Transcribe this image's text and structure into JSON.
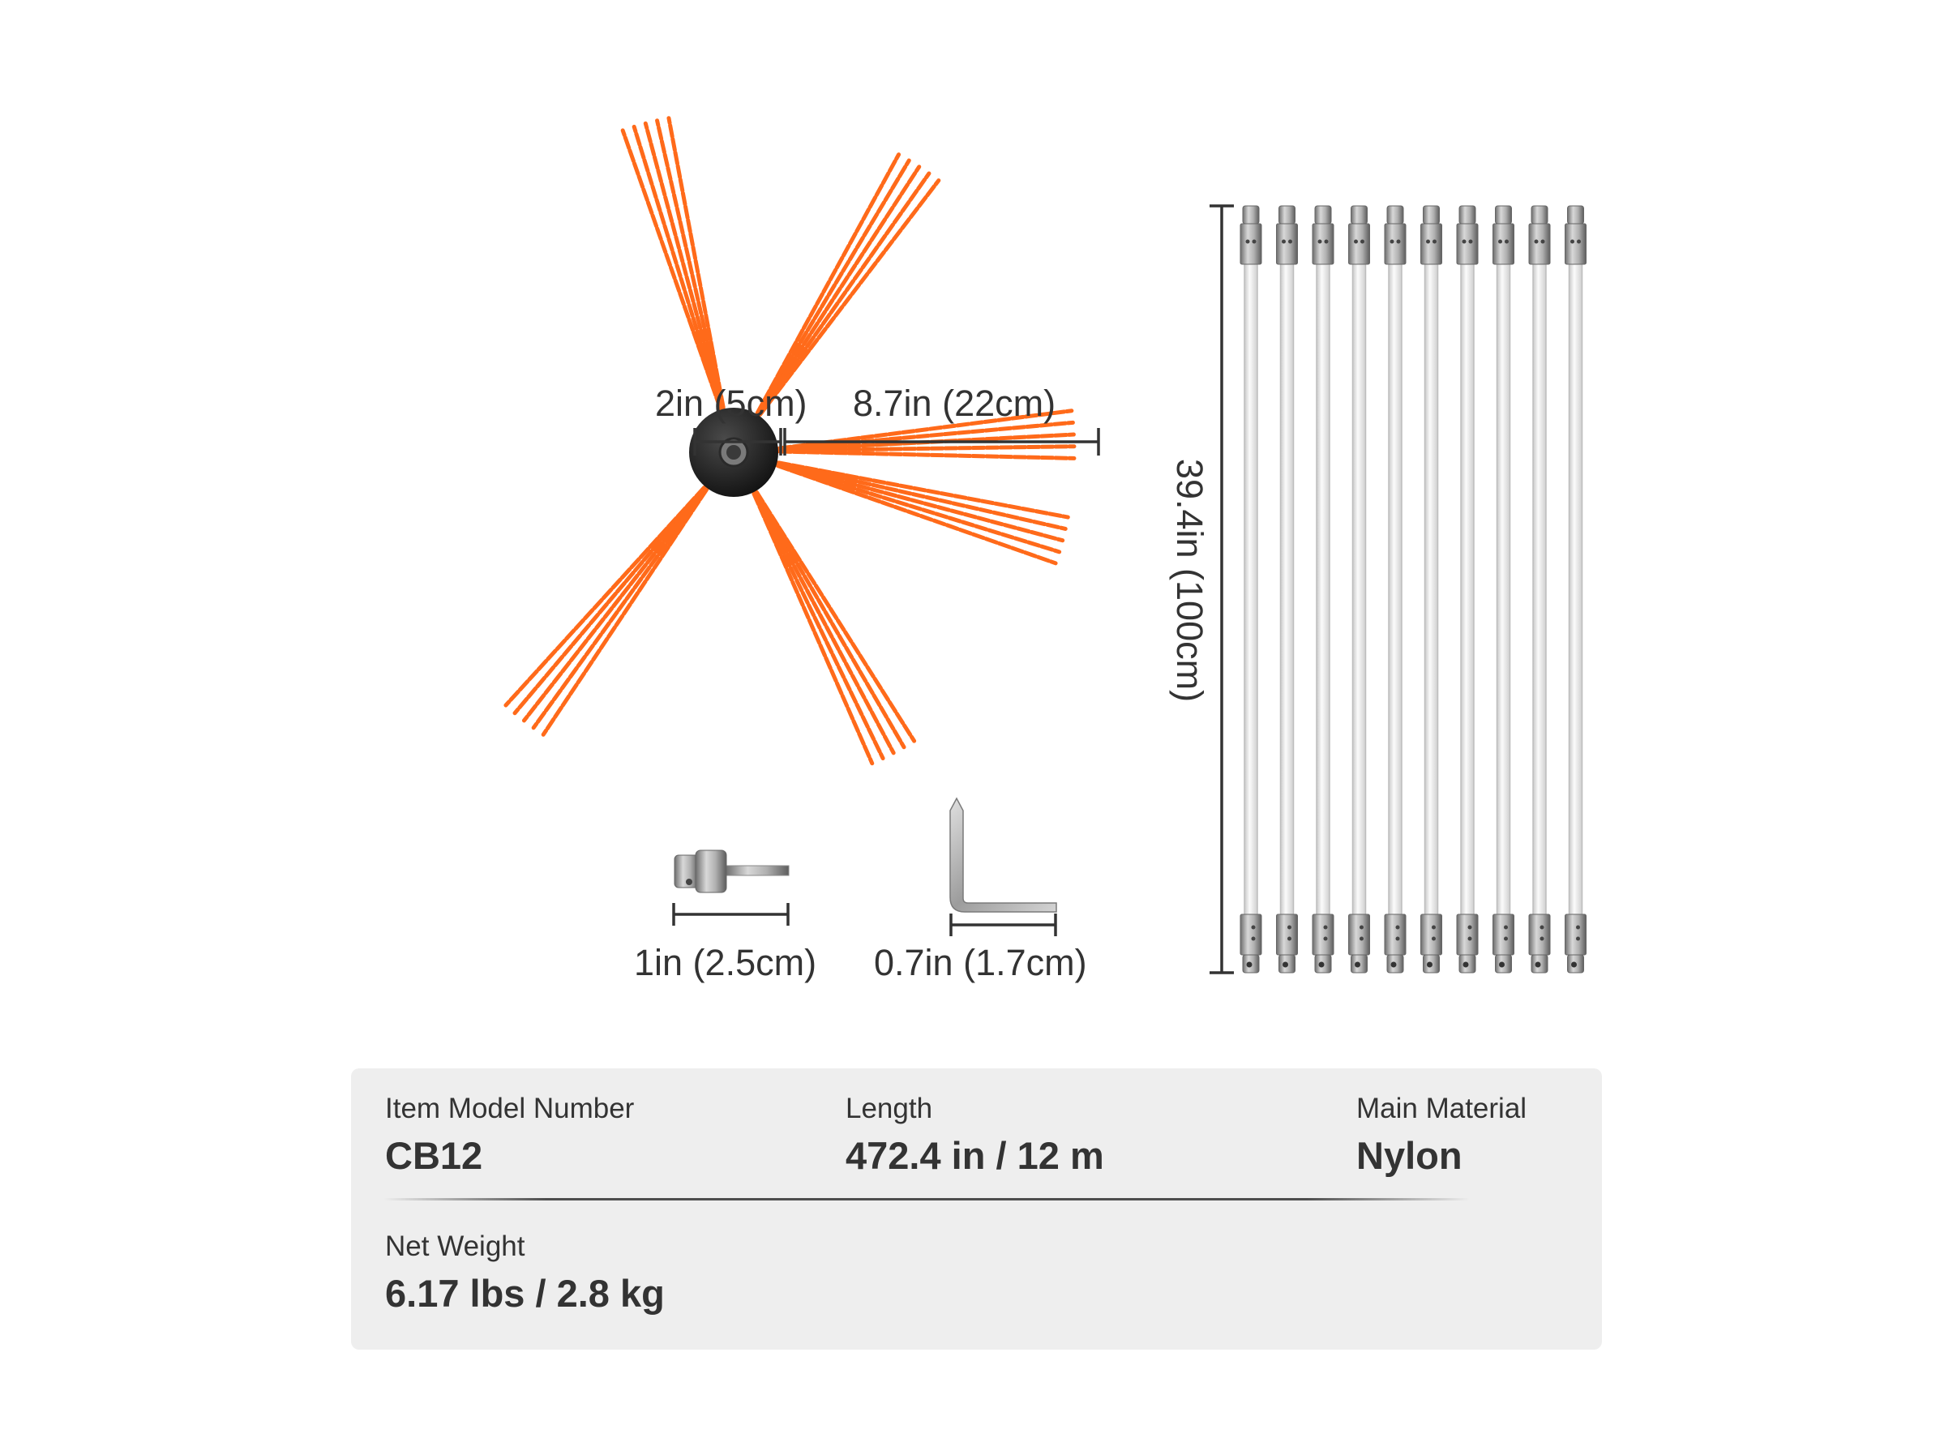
{
  "dimensions": {
    "hub_diameter": "2in (5cm)",
    "bristle_length": "8.7in (22cm)",
    "rod_length": "39.4in (100cm)",
    "adapter_length": "1in (2.5cm)",
    "wrench_length": "0.7in (1.7cm)"
  },
  "product": {
    "bristle_arm_count": 6,
    "rod_count": 10
  },
  "specs": {
    "model_label": "Item Model Number",
    "model_value": "CB12",
    "length_label": "Length",
    "length_value": "472.4 in / 12 m",
    "material_label": "Main Material",
    "material_value": "Nylon",
    "weight_label": "Net Weight",
    "weight_value": "6.17 lbs / 2.8 kg"
  },
  "colors": {
    "bristle": "#ff6a1a",
    "hub": "#1e1e1e",
    "rod": "#f0f0f0",
    "metal": "#9a9a9a",
    "text": "#333333",
    "card": "#eeeeee"
  }
}
